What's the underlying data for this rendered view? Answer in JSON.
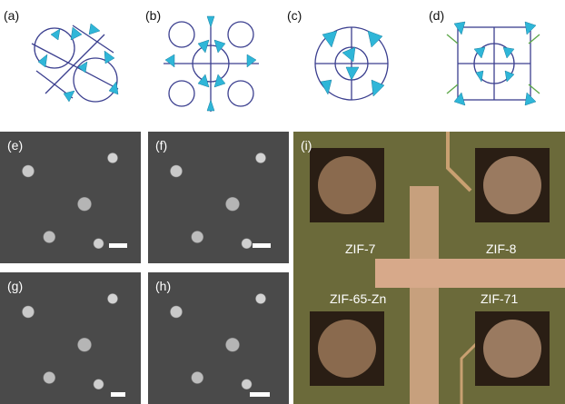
{
  "panels": {
    "a": "(a)",
    "b": "(b)",
    "c": "(c)",
    "d": "(d)",
    "e": "(e)",
    "f": "(f)",
    "g": "(g)",
    "h": "(h)",
    "i": "(i)"
  },
  "chip_labels": {
    "zif7": "ZIF-7",
    "zif8": "ZIF-8",
    "zif65": "ZIF-65-Zn",
    "zif71": "ZIF-71"
  },
  "colors": {
    "tetrahedra": "#2fb6d8",
    "linker": "#3b3f8f",
    "linker_alt": "#5ea84a",
    "sem_bg": "#4a4a4a",
    "chip_bg": "#6b6a3a",
    "trace": "#d7a98a"
  }
}
